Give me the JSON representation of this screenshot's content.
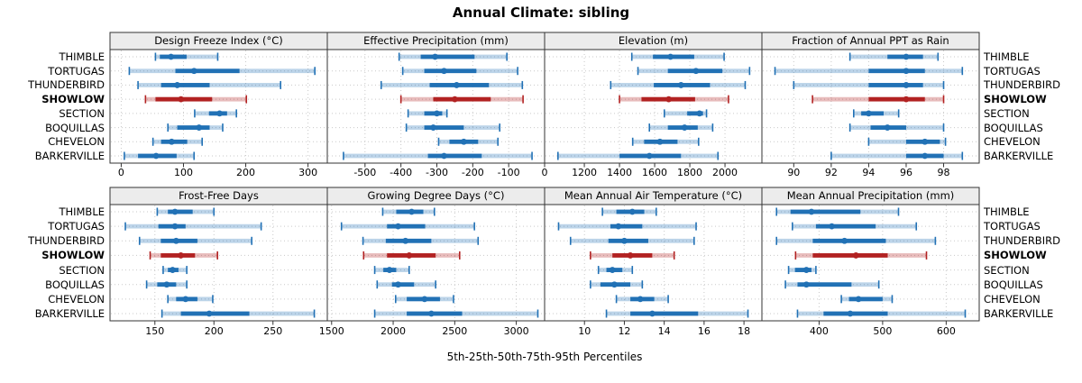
{
  "title": "Annual Climate: sibling",
  "xlabel": "5th-25th-50th-75th-95th Percentiles",
  "percentiles": [
    5,
    25,
    50,
    75,
    95
  ],
  "sites": [
    "THIMBLE",
    "TORTUGAS",
    "THUNDERBIRD",
    "SHOWLOW",
    "SECTION",
    "BOQUILLAS",
    "CHEVELON",
    "BARKERVILLE"
  ],
  "highlight_site": "SHOWLOW",
  "colors": {
    "series": "#2171B5",
    "highlight": "#B22222",
    "strip_bg": "#ECECEC",
    "panel_border": "#333333",
    "grid": "#C9C9C9",
    "text": "#000000"
  },
  "chart_data": [
    {
      "type": "interval",
      "title": "Design Freeze Index (°C)",
      "xlim": [
        -18,
        331
      ],
      "ticks": [
        0,
        100,
        200,
        300
      ],
      "values": [
        [
          55,
          62,
          80,
          105,
          155
        ],
        [
          13,
          87,
          117,
          190,
          311
        ],
        [
          27,
          64,
          90,
          142,
          256
        ],
        [
          39,
          55,
          96,
          146,
          201
        ],
        [
          118,
          141,
          158,
          170,
          185
        ],
        [
          75,
          90,
          125,
          142,
          163
        ],
        [
          51,
          64,
          81,
          106,
          130
        ],
        [
          5,
          27,
          56,
          89,
          117
        ]
      ]
    },
    {
      "type": "interval",
      "title": "Effective Precipitation (mm)",
      "xlim": [
        -605,
        0
      ],
      "ticks": [
        -500,
        -400,
        -300,
        -200,
        -100,
        0
      ],
      "values": [
        [
          -405,
          -345,
          -305,
          -195,
          -105
        ],
        [
          -395,
          -335,
          -280,
          -190,
          -75
        ],
        [
          -455,
          -320,
          -245,
          -155,
          -62
        ],
        [
          -400,
          -310,
          -250,
          -150,
          -60
        ],
        [
          -380,
          -335,
          -300,
          -285,
          -272
        ],
        [
          -385,
          -335,
          -310,
          -225,
          -125
        ],
        [
          -295,
          -265,
          -225,
          -185,
          -130
        ],
        [
          -560,
          -325,
          -280,
          -175,
          -35
        ]
      ]
    },
    {
      "type": "interval",
      "title": "Elevation (m)",
      "xlim": [
        974,
        2210
      ],
      "ticks": [
        1200,
        1400,
        1600,
        1800,
        2000
      ],
      "values": [
        [
          1470,
          1590,
          1690,
          1825,
          1995
        ],
        [
          1505,
          1675,
          1835,
          1985,
          2140
        ],
        [
          1350,
          1595,
          1750,
          1915,
          2115
        ],
        [
          1400,
          1525,
          1680,
          1830,
          2020
        ],
        [
          1655,
          1785,
          1855,
          1875,
          1895
        ],
        [
          1570,
          1675,
          1770,
          1845,
          1930
        ],
        [
          1475,
          1540,
          1630,
          1730,
          1850
        ],
        [
          1050,
          1400,
          1570,
          1750,
          1960
        ]
      ]
    },
    {
      "type": "interval",
      "title": "Fraction of Annual PPT as Rain",
      "xlim": [
        88.3,
        99.9
      ],
      "ticks": [
        90,
        92,
        94,
        96,
        98
      ],
      "values": [
        [
          93.0,
          95.0,
          96.0,
          96.9,
          97.7
        ],
        [
          89.0,
          94.0,
          96.0,
          97.0,
          99.0
        ],
        [
          90.0,
          94.0,
          96.0,
          96.9,
          98.0
        ],
        [
          91.0,
          94.0,
          96.0,
          97.0,
          98.0
        ],
        [
          93.2,
          93.6,
          94.0,
          94.8,
          95.6
        ],
        [
          93.0,
          94.1,
          95.0,
          96.0,
          98.0
        ],
        [
          94.0,
          96.0,
          97.0,
          97.8,
          98.1
        ],
        [
          92.0,
          96.0,
          97.0,
          98.0,
          99.0
        ]
      ]
    },
    {
      "type": "interval",
      "title": "Frost-Free Days",
      "xlim": [
        112,
        296
      ],
      "ticks": [
        150,
        200,
        250
      ],
      "values": [
        [
          152,
          161,
          167,
          182,
          200
        ],
        [
          125,
          153,
          167,
          176,
          240
        ],
        [
          137,
          155,
          168,
          186,
          232
        ],
        [
          146,
          155,
          172,
          184,
          203
        ],
        [
          157,
          161,
          165,
          170,
          177
        ],
        [
          143,
          152,
          160,
          168,
          177
        ],
        [
          161,
          168,
          176,
          186,
          199
        ],
        [
          156,
          172,
          196,
          230,
          285
        ]
      ]
    },
    {
      "type": "interval",
      "title": "Growing Degree Days (°C)",
      "xlim": [
        1465,
        3230
      ],
      "ticks": [
        1500,
        2000,
        2500,
        3000
      ],
      "values": [
        [
          1915,
          2025,
          2150,
          2245,
          2335
        ],
        [
          1580,
          1950,
          2040,
          2260,
          2660
        ],
        [
          1755,
          1940,
          2100,
          2310,
          2690
        ],
        [
          1760,
          1950,
          2130,
          2345,
          2540
        ],
        [
          1850,
          1920,
          1970,
          2025,
          2130
        ],
        [
          1870,
          1990,
          2040,
          2170,
          2345
        ],
        [
          2020,
          2110,
          2255,
          2380,
          2490
        ],
        [
          1850,
          2110,
          2310,
          2560,
          3175
        ]
      ]
    },
    {
      "type": "interval",
      "title": "Mean Annual Air Temperature (°C)",
      "xlim": [
        8.0,
        18.9
      ],
      "ticks": [
        10,
        12,
        14,
        16,
        18
      ],
      "values": [
        [
          10.9,
          11.6,
          12.4,
          13.0,
          13.6
        ],
        [
          8.7,
          11.3,
          11.7,
          12.9,
          15.6
        ],
        [
          9.3,
          11.2,
          12.0,
          13.2,
          15.5
        ],
        [
          10.3,
          11.4,
          12.3,
          13.4,
          14.5
        ],
        [
          10.7,
          11.1,
          11.4,
          11.9,
          12.4
        ],
        [
          10.3,
          10.8,
          11.5,
          12.3,
          12.9
        ],
        [
          11.6,
          12.3,
          12.8,
          13.5,
          14.2
        ],
        [
          11.1,
          12.3,
          13.4,
          15.7,
          18.2
        ]
      ]
    },
    {
      "type": "interval",
      "title": "Mean Annual Precipitation (mm)",
      "xlim": [
        310,
        652
      ],
      "ticks": [
        400,
        500,
        600
      ],
      "values": [
        [
          333,
          355,
          388,
          465,
          525
        ],
        [
          358,
          395,
          420,
          489,
          553
        ],
        [
          333,
          390,
          440,
          505,
          583
        ],
        [
          363,
          390,
          458,
          508,
          569
        ],
        [
          352,
          362,
          380,
          388,
          395
        ],
        [
          347,
          366,
          380,
          451,
          494
        ],
        [
          435,
          447,
          462,
          500,
          515
        ],
        [
          366,
          407,
          449,
          508,
          630
        ]
      ]
    }
  ]
}
